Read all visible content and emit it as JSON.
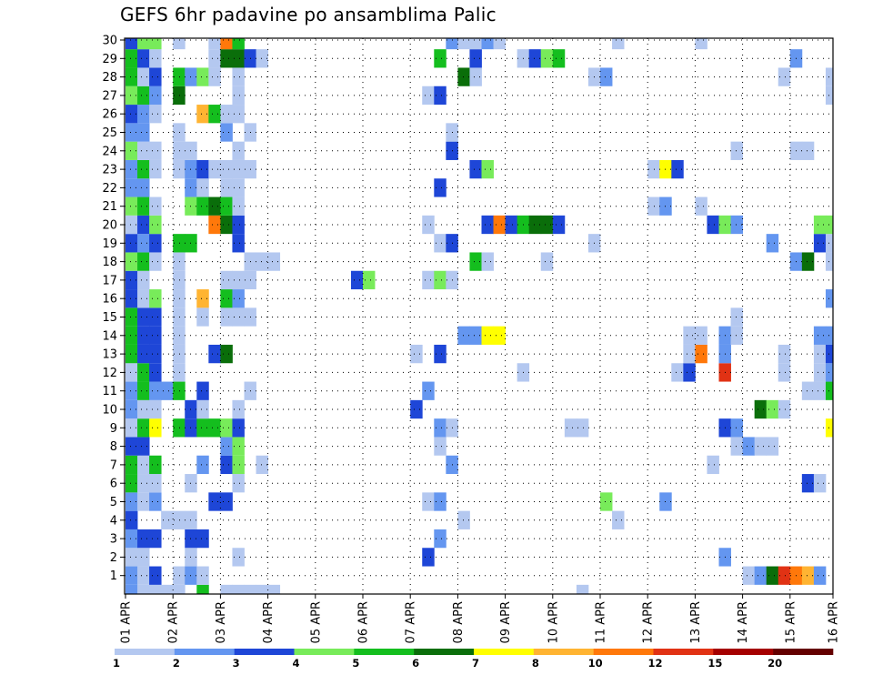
{
  "chart_data": {
    "type": "heatmap",
    "title": "GEFS 6hr padavine po ansamblima Palic",
    "xlabel": "",
    "ylabel": "",
    "x_ticks": [
      "01 APR",
      "02 APR",
      "03 APR",
      "04 APR",
      "05 APR",
      "06 APR",
      "07 APR",
      "08 APR",
      "09 APR",
      "10 APR",
      "11 APR",
      "12 APR",
      "13 APR",
      "14 APR",
      "15 APR",
      "16 APR"
    ],
    "xlim": [
      0,
      60
    ],
    "y_ticks": [
      1,
      2,
      3,
      4,
      5,
      6,
      7,
      8,
      9,
      10,
      11,
      12,
      13,
      14,
      15,
      16,
      17,
      18,
      19,
      20,
      21,
      22,
      23,
      24,
      25,
      26,
      27,
      28,
      29,
      30
    ],
    "ylim": [
      0,
      30
    ],
    "grid": true,
    "colorbar": {
      "labels": [
        "1",
        "2",
        "3",
        "4",
        "5",
        "6",
        "7",
        "8",
        "10",
        "12",
        "15",
        "20"
      ],
      "colors": [
        "#b4c8f0",
        "#6496f0",
        "#1e46d7",
        "#78eb5a",
        "#14be1e",
        "#0a6e0a",
        "#ffff00",
        "#ffb432",
        "#ff780a",
        "#e13214",
        "#a50000",
        "#640000"
      ]
    },
    "cells": [
      [
        0,
        0,
        2
      ],
      [
        1,
        0,
        1
      ],
      [
        2,
        0,
        1
      ],
      [
        3,
        0,
        1
      ],
      [
        4,
        0,
        1
      ],
      [
        6,
        0,
        5
      ],
      [
        8,
        0,
        1
      ],
      [
        9,
        0,
        1
      ],
      [
        10,
        0,
        1
      ],
      [
        11,
        0,
        1
      ],
      [
        12,
        0,
        1
      ],
      [
        38,
        0,
        1
      ],
      [
        0,
        1,
        2
      ],
      [
        1,
        1,
        1
      ],
      [
        2,
        1,
        3
      ],
      [
        4,
        1,
        1
      ],
      [
        5,
        1,
        2
      ],
      [
        6,
        1,
        1
      ],
      [
        52,
        1,
        1
      ],
      [
        53,
        1,
        2
      ],
      [
        54,
        1,
        6
      ],
      [
        55,
        1,
        10
      ],
      [
        56,
        1,
        9
      ],
      [
        57,
        1,
        8
      ],
      [
        58,
        1,
        2
      ],
      [
        0,
        2,
        1
      ],
      [
        1,
        2,
        1
      ],
      [
        5,
        2,
        1
      ],
      [
        9,
        2,
        1
      ],
      [
        25,
        2,
        3
      ],
      [
        50,
        2,
        2
      ],
      [
        0,
        3,
        2
      ],
      [
        1,
        3,
        3
      ],
      [
        2,
        3,
        3
      ],
      [
        5,
        3,
        3
      ],
      [
        6,
        3,
        3
      ],
      [
        26,
        3,
        2
      ],
      [
        0,
        4,
        3
      ],
      [
        3,
        4,
        1
      ],
      [
        4,
        4,
        1
      ],
      [
        5,
        4,
        1
      ],
      [
        28,
        4,
        1
      ],
      [
        41,
        4,
        1
      ],
      [
        0,
        5,
        2
      ],
      [
        1,
        5,
        1
      ],
      [
        2,
        5,
        2
      ],
      [
        7,
        5,
        3
      ],
      [
        8,
        5,
        3
      ],
      [
        25,
        5,
        1
      ],
      [
        26,
        5,
        2
      ],
      [
        40,
        5,
        4
      ],
      [
        45,
        5,
        2
      ],
      [
        0,
        6,
        5
      ],
      [
        1,
        6,
        1
      ],
      [
        2,
        6,
        1
      ],
      [
        5,
        6,
        1
      ],
      [
        9,
        6,
        1
      ],
      [
        57,
        6,
        3
      ],
      [
        58,
        6,
        1
      ],
      [
        0,
        7,
        5
      ],
      [
        1,
        7,
        1
      ],
      [
        2,
        7,
        5
      ],
      [
        6,
        7,
        2
      ],
      [
        8,
        7,
        3
      ],
      [
        9,
        7,
        4
      ],
      [
        11,
        7,
        1
      ],
      [
        27,
        7,
        2
      ],
      [
        49,
        7,
        1
      ],
      [
        0,
        8,
        3
      ],
      [
        1,
        8,
        3
      ],
      [
        8,
        8,
        2
      ],
      [
        9,
        8,
        4
      ],
      [
        26,
        8,
        1
      ],
      [
        51,
        8,
        1
      ],
      [
        52,
        8,
        2
      ],
      [
        53,
        8,
        1
      ],
      [
        54,
        8,
        1
      ],
      [
        0,
        9,
        1
      ],
      [
        1,
        9,
        5
      ],
      [
        2,
        9,
        7
      ],
      [
        4,
        9,
        5
      ],
      [
        5,
        9,
        3
      ],
      [
        6,
        9,
        5
      ],
      [
        7,
        9,
        5
      ],
      [
        8,
        9,
        4
      ],
      [
        9,
        9,
        3
      ],
      [
        26,
        9,
        2
      ],
      [
        27,
        9,
        1
      ],
      [
        37,
        9,
        1
      ],
      [
        38,
        9,
        1
      ],
      [
        50,
        9,
        3
      ],
      [
        51,
        9,
        2
      ],
      [
        59,
        9,
        7
      ],
      [
        60,
        9,
        8
      ],
      [
        0,
        10,
        2
      ],
      [
        1,
        10,
        1
      ],
      [
        2,
        10,
        1
      ],
      [
        5,
        10,
        3
      ],
      [
        6,
        10,
        1
      ],
      [
        9,
        10,
        1
      ],
      [
        24,
        10,
        3
      ],
      [
        53,
        10,
        6
      ],
      [
        54,
        10,
        4
      ],
      [
        55,
        10,
        1
      ],
      [
        0,
        11,
        2
      ],
      [
        1,
        11,
        5
      ],
      [
        2,
        11,
        2
      ],
      [
        3,
        11,
        2
      ],
      [
        4,
        11,
        5
      ],
      [
        6,
        11,
        3
      ],
      [
        10,
        11,
        1
      ],
      [
        25,
        11,
        2
      ],
      [
        57,
        11,
        1
      ],
      [
        58,
        11,
        1
      ],
      [
        59,
        11,
        5
      ],
      [
        60,
        11,
        1
      ],
      [
        0,
        12,
        1
      ],
      [
        1,
        12,
        5
      ],
      [
        2,
        12,
        3
      ],
      [
        4,
        12,
        1
      ],
      [
        33,
        12,
        1
      ],
      [
        46,
        12,
        1
      ],
      [
        47,
        12,
        3
      ],
      [
        50,
        12,
        10
      ],
      [
        55,
        12,
        1
      ],
      [
        58,
        12,
        1
      ],
      [
        59,
        12,
        2
      ],
      [
        0,
        13,
        5
      ],
      [
        1,
        13,
        3
      ],
      [
        2,
        13,
        3
      ],
      [
        4,
        13,
        1
      ],
      [
        7,
        13,
        3
      ],
      [
        8,
        13,
        6
      ],
      [
        24,
        13,
        1
      ],
      [
        26,
        13,
        3
      ],
      [
        47,
        13,
        1
      ],
      [
        48,
        13,
        9
      ],
      [
        50,
        13,
        2
      ],
      [
        55,
        13,
        1
      ],
      [
        58,
        13,
        1
      ],
      [
        59,
        13,
        3
      ],
      [
        0,
        14,
        5
      ],
      [
        1,
        14,
        3
      ],
      [
        2,
        14,
        3
      ],
      [
        4,
        14,
        1
      ],
      [
        28,
        14,
        2
      ],
      [
        29,
        14,
        2
      ],
      [
        30,
        14,
        7
      ],
      [
        31,
        14,
        7
      ],
      [
        47,
        14,
        1
      ],
      [
        48,
        14,
        1
      ],
      [
        50,
        14,
        2
      ],
      [
        51,
        14,
        1
      ],
      [
        58,
        14,
        2
      ],
      [
        59,
        14,
        2
      ],
      [
        0,
        15,
        5
      ],
      [
        1,
        15,
        3
      ],
      [
        2,
        15,
        3
      ],
      [
        4,
        15,
        1
      ],
      [
        6,
        15,
        1
      ],
      [
        8,
        15,
        1
      ],
      [
        9,
        15,
        1
      ],
      [
        10,
        15,
        1
      ],
      [
        51,
        15,
        1
      ],
      [
        0,
        16,
        3
      ],
      [
        1,
        16,
        1
      ],
      [
        2,
        16,
        4
      ],
      [
        4,
        16,
        1
      ],
      [
        6,
        16,
        8
      ],
      [
        8,
        16,
        5
      ],
      [
        9,
        16,
        2
      ],
      [
        59,
        16,
        2
      ],
      [
        60,
        16,
        2
      ],
      [
        0,
        17,
        3
      ],
      [
        1,
        17,
        1
      ],
      [
        4,
        17,
        1
      ],
      [
        8,
        17,
        1
      ],
      [
        9,
        17,
        1
      ],
      [
        10,
        17,
        1
      ],
      [
        19,
        17,
        3
      ],
      [
        20,
        17,
        4
      ],
      [
        25,
        17,
        1
      ],
      [
        26,
        17,
        4
      ],
      [
        27,
        17,
        1
      ],
      [
        0,
        18,
        4
      ],
      [
        1,
        18,
        5
      ],
      [
        2,
        18,
        1
      ],
      [
        4,
        18,
        1
      ],
      [
        10,
        18,
        1
      ],
      [
        11,
        18,
        1
      ],
      [
        12,
        18,
        1
      ],
      [
        29,
        18,
        5
      ],
      [
        30,
        18,
        1
      ],
      [
        35,
        18,
        1
      ],
      [
        56,
        18,
        2
      ],
      [
        57,
        18,
        6
      ],
      [
        59,
        18,
        1
      ],
      [
        60,
        18,
        5
      ],
      [
        0,
        19,
        3
      ],
      [
        1,
        19,
        2
      ],
      [
        2,
        19,
        3
      ],
      [
        4,
        19,
        5
      ],
      [
        5,
        19,
        5
      ],
      [
        9,
        19,
        3
      ],
      [
        26,
        19,
        1
      ],
      [
        27,
        19,
        3
      ],
      [
        39,
        19,
        1
      ],
      [
        54,
        19,
        2
      ],
      [
        58,
        19,
        3
      ],
      [
        59,
        19,
        1
      ],
      [
        0,
        20,
        1
      ],
      [
        1,
        20,
        3
      ],
      [
        2,
        20,
        4
      ],
      [
        7,
        20,
        9
      ],
      [
        8,
        20,
        6
      ],
      [
        9,
        20,
        3
      ],
      [
        25,
        20,
        1
      ],
      [
        30,
        20,
        3
      ],
      [
        31,
        20,
        9
      ],
      [
        32,
        20,
        3
      ],
      [
        33,
        20,
        5
      ],
      [
        34,
        20,
        6
      ],
      [
        35,
        20,
        6
      ],
      [
        36,
        20,
        3
      ],
      [
        49,
        20,
        3
      ],
      [
        50,
        20,
        4
      ],
      [
        51,
        20,
        2
      ],
      [
        58,
        20,
        4
      ],
      [
        59,
        20,
        4
      ],
      [
        0,
        21,
        4
      ],
      [
        1,
        21,
        5
      ],
      [
        2,
        21,
        1
      ],
      [
        5,
        21,
        4
      ],
      [
        6,
        21,
        5
      ],
      [
        7,
        21,
        6
      ],
      [
        8,
        21,
        5
      ],
      [
        9,
        21,
        1
      ],
      [
        44,
        21,
        1
      ],
      [
        45,
        21,
        2
      ],
      [
        48,
        21,
        1
      ],
      [
        0,
        22,
        2
      ],
      [
        1,
        22,
        2
      ],
      [
        5,
        22,
        2
      ],
      [
        6,
        22,
        1
      ],
      [
        8,
        22,
        1
      ],
      [
        9,
        22,
        1
      ],
      [
        26,
        22,
        3
      ],
      [
        0,
        23,
        2
      ],
      [
        1,
        23,
        5
      ],
      [
        2,
        23,
        1
      ],
      [
        4,
        23,
        1
      ],
      [
        5,
        23,
        2
      ],
      [
        6,
        23,
        3
      ],
      [
        7,
        23,
        1
      ],
      [
        8,
        23,
        1
      ],
      [
        9,
        23,
        1
      ],
      [
        10,
        23,
        1
      ],
      [
        29,
        23,
        3
      ],
      [
        30,
        23,
        4
      ],
      [
        44,
        23,
        1
      ],
      [
        45,
        23,
        7
      ],
      [
        46,
        23,
        3
      ],
      [
        0,
        24,
        4
      ],
      [
        1,
        24,
        1
      ],
      [
        2,
        24,
        1
      ],
      [
        4,
        24,
        1
      ],
      [
        5,
        24,
        1
      ],
      [
        9,
        24,
        1
      ],
      [
        27,
        24,
        3
      ],
      [
        51,
        24,
        1
      ],
      [
        56,
        24,
        1
      ],
      [
        57,
        24,
        1
      ],
      [
        0,
        25,
        2
      ],
      [
        1,
        25,
        2
      ],
      [
        4,
        25,
        1
      ],
      [
        8,
        25,
        2
      ],
      [
        10,
        25,
        1
      ],
      [
        27,
        25,
        1
      ],
      [
        0,
        26,
        3
      ],
      [
        1,
        26,
        2
      ],
      [
        2,
        26,
        1
      ],
      [
        6,
        26,
        8
      ],
      [
        7,
        26,
        5
      ],
      [
        8,
        26,
        1
      ],
      [
        9,
        26,
        1
      ],
      [
        0,
        27,
        4
      ],
      [
        1,
        27,
        5
      ],
      [
        2,
        27,
        2
      ],
      [
        4,
        27,
        6
      ],
      [
        9,
        27,
        1
      ],
      [
        25,
        27,
        1
      ],
      [
        26,
        27,
        3
      ],
      [
        59,
        27,
        1
      ],
      [
        0,
        28,
        5
      ],
      [
        1,
        28,
        1
      ],
      [
        2,
        28,
        3
      ],
      [
        4,
        28,
        5
      ],
      [
        5,
        28,
        2
      ],
      [
        6,
        28,
        4
      ],
      [
        7,
        28,
        1
      ],
      [
        9,
        28,
        1
      ],
      [
        28,
        28,
        6
      ],
      [
        29,
        28,
        1
      ],
      [
        39,
        28,
        1
      ],
      [
        40,
        28,
        2
      ],
      [
        55,
        28,
        1
      ],
      [
        59,
        28,
        1
      ],
      [
        0,
        29,
        5
      ],
      [
        1,
        29,
        3
      ],
      [
        2,
        29,
        1
      ],
      [
        7,
        29,
        1
      ],
      [
        8,
        29,
        6
      ],
      [
        9,
        29,
        6
      ],
      [
        10,
        29,
        3
      ],
      [
        11,
        29,
        1
      ],
      [
        26,
        29,
        5
      ],
      [
        29,
        29,
        3
      ],
      [
        33,
        29,
        1
      ],
      [
        34,
        29,
        3
      ],
      [
        35,
        29,
        4
      ],
      [
        36,
        29,
        5
      ],
      [
        56,
        29,
        2
      ],
      [
        0,
        30,
        3
      ],
      [
        1,
        30,
        4
      ],
      [
        2,
        30,
        4
      ],
      [
        4,
        30,
        1
      ],
      [
        7,
        30,
        1
      ],
      [
        8,
        30,
        9
      ],
      [
        9,
        30,
        5
      ],
      [
        27,
        30,
        2
      ],
      [
        28,
        30,
        1
      ],
      [
        29,
        30,
        1
      ],
      [
        30,
        30,
        2
      ],
      [
        31,
        30,
        1
      ],
      [
        41,
        30,
        1
      ],
      [
        48,
        30,
        1
      ]
    ]
  }
}
